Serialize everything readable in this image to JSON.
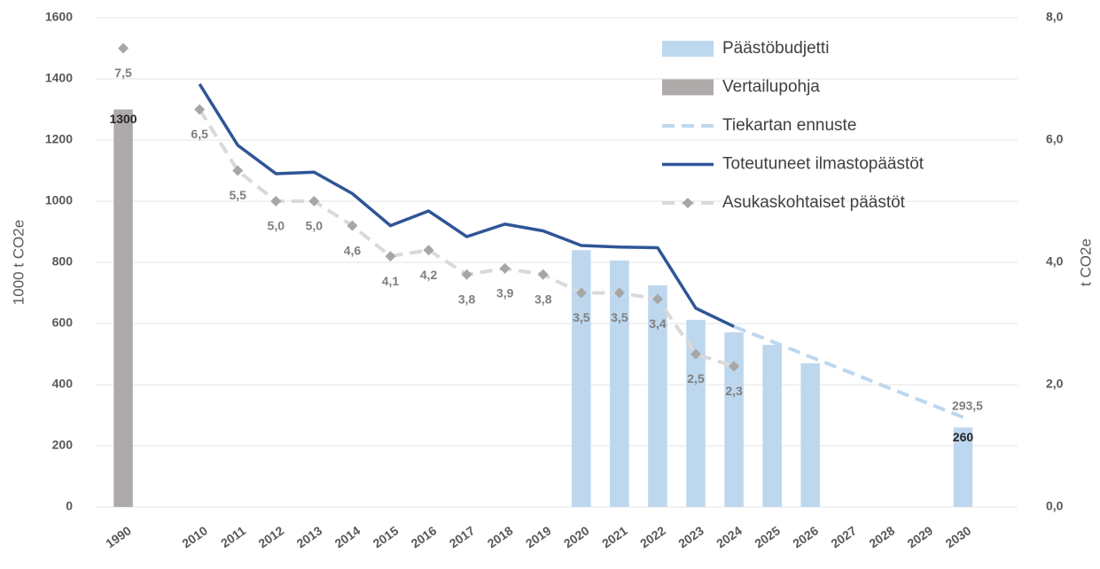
{
  "chart_data": {
    "type": "combo",
    "ylabel": "1000 t CO2e",
    "y2label": "t CO2e",
    "categories": [
      "1990",
      null,
      "2010",
      "2011",
      "2012",
      "2013",
      "2014",
      "2015",
      "2016",
      "2017",
      "2018",
      "2019",
      "2020",
      "2021",
      "2022",
      "2023",
      "2024",
      "2025",
      "2026",
      "2027",
      "2028",
      "2029",
      "2030"
    ],
    "ylim": [
      0,
      1600
    ],
    "yticks": [
      0,
      200,
      400,
      600,
      800,
      1000,
      1200,
      1400,
      1600
    ],
    "y2lim": [
      0,
      8
    ],
    "y2ticks": [
      {
        "value": 0,
        "label": "0,0"
      },
      {
        "value": 2,
        "label": "2,0"
      },
      {
        "value": 4,
        "label": "4,0"
      },
      {
        "value": 6,
        "label": "6,0"
      },
      {
        "value": 8,
        "label": "8,0"
      }
    ],
    "grid": true,
    "legend": "top-right",
    "series": [
      {
        "name": "Päästöbudjetti",
        "kind": "bar",
        "color": "#bdd7ee",
        "values": [
          null,
          null,
          null,
          null,
          null,
          null,
          null,
          null,
          null,
          null,
          null,
          null,
          840,
          806,
          725,
          612,
          571,
          530,
          470,
          null,
          null,
          null,
          260
        ],
        "value_labels": [
          null,
          null,
          null,
          null,
          null,
          null,
          null,
          null,
          null,
          null,
          null,
          null,
          null,
          null,
          null,
          null,
          null,
          null,
          null,
          null,
          null,
          null,
          "260"
        ]
      },
      {
        "name": "Vertailupohja",
        "kind": "bar",
        "color": "#aeaaaa",
        "values": [
          1300,
          null,
          null,
          null,
          null,
          null,
          null,
          null,
          null,
          null,
          null,
          null,
          null,
          null,
          null,
          null,
          null,
          null,
          null,
          null,
          null,
          null,
          null
        ],
        "value_labels": [
          "1300",
          null,
          null,
          null,
          null,
          null,
          null,
          null,
          null,
          null,
          null,
          null,
          null,
          null,
          null,
          null,
          null,
          null,
          null,
          null,
          null,
          null,
          null
        ]
      },
      {
        "name": "Tiekartan ennuste",
        "kind": "line",
        "dash": true,
        "color": "#bdd7ee",
        "values": [
          null,
          null,
          null,
          null,
          null,
          null,
          null,
          null,
          null,
          null,
          null,
          null,
          null,
          null,
          null,
          null,
          590,
          541,
          491,
          442,
          392,
          343,
          293.5
        ],
        "value_labels": [
          null,
          null,
          null,
          null,
          null,
          null,
          null,
          null,
          null,
          null,
          null,
          null,
          null,
          null,
          null,
          null,
          null,
          null,
          null,
          null,
          null,
          null,
          "293,5"
        ]
      },
      {
        "name": "Toteutuneet ilmastopäästöt",
        "kind": "line",
        "dash": false,
        "color": "#2f5597",
        "values": [
          null,
          null,
          1383,
          1183,
          1090,
          1095,
          1025,
          920,
          968,
          884,
          925,
          903,
          855,
          850,
          848,
          650,
          590,
          null,
          null,
          null,
          null,
          null,
          null
        ]
      },
      {
        "name": "Asukaskohtaiset päästöt",
        "kind": "line",
        "dash": true,
        "marker": "diamond",
        "axis": "y2",
        "color": "#d9d9d9",
        "marker_color": "#a6a6a6",
        "values": [
          7.5,
          null,
          6.5,
          5.5,
          5.0,
          5.0,
          4.6,
          4.1,
          4.2,
          3.8,
          3.9,
          3.8,
          3.5,
          3.5,
          3.4,
          2.5,
          2.3,
          null,
          null,
          null,
          null,
          null,
          null
        ],
        "value_labels": [
          "7,5",
          null,
          "6,5",
          "5,5",
          "5,0",
          "5,0",
          "4,6",
          "4,1",
          "4,2",
          "3,8",
          "3,9",
          "3,8",
          "3,5",
          "3,5",
          "3,4",
          "2,5",
          "2,3",
          null,
          null,
          null,
          null,
          null,
          null
        ]
      }
    ]
  }
}
